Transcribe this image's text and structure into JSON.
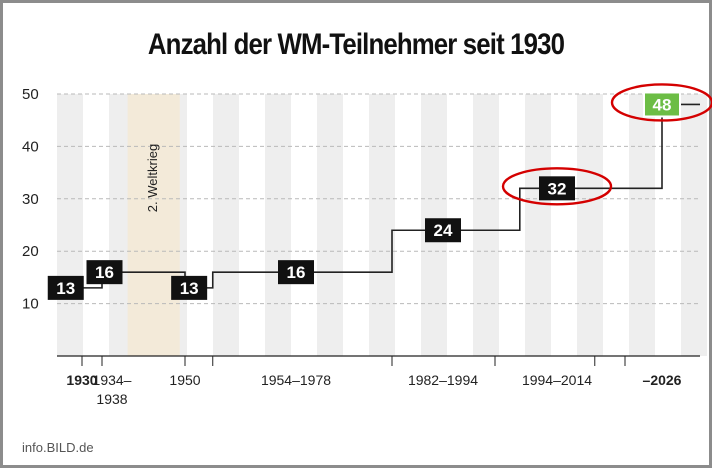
{
  "title": "Anzahl der WM-Teilnehmer seit 1930",
  "footer": "info.BILD.de",
  "colors": {
    "box": "#111111",
    "highlight": "#6cbd45",
    "circle": "#d40000",
    "war_band": "#f3ead9",
    "stripe": "#eeeeee"
  },
  "chart_data": {
    "type": "line",
    "step": true,
    "title": "Anzahl der WM-Teilnehmer seit 1930",
    "ylim": [
      0,
      50
    ],
    "y_ticks": [
      10,
      20,
      30,
      40,
      50
    ],
    "grid": true,
    "x_tick_labels": [
      "1930",
      "1934–1938",
      "1950",
      "1954–1978",
      "1982–1994",
      "1994–2014",
      "–2026"
    ],
    "x_tick_values": [
      1930,
      1936,
      1950,
      1966,
      1988,
      2004,
      2026
    ],
    "annotations": [
      {
        "text": "2. Weltkrieg",
        "x_range": [
          1939,
          1949
        ]
      }
    ],
    "series": [
      {
        "points": [
          {
            "x": 1930,
            "y": 13,
            "label": "13"
          },
          {
            "x": 1934,
            "y": 16,
            "label": "16"
          },
          {
            "x": 1950,
            "y": 13,
            "label": "13"
          },
          {
            "x": 1954,
            "y": 16,
            "label": "16"
          },
          {
            "x": 1982,
            "y": 24,
            "label": "24"
          },
          {
            "x": 1998,
            "y": 32,
            "label": "32",
            "circled": true
          },
          {
            "x": 2026,
            "y": 48,
            "label": "48",
            "circled": true,
            "highlight": true
          }
        ]
      }
    ]
  }
}
